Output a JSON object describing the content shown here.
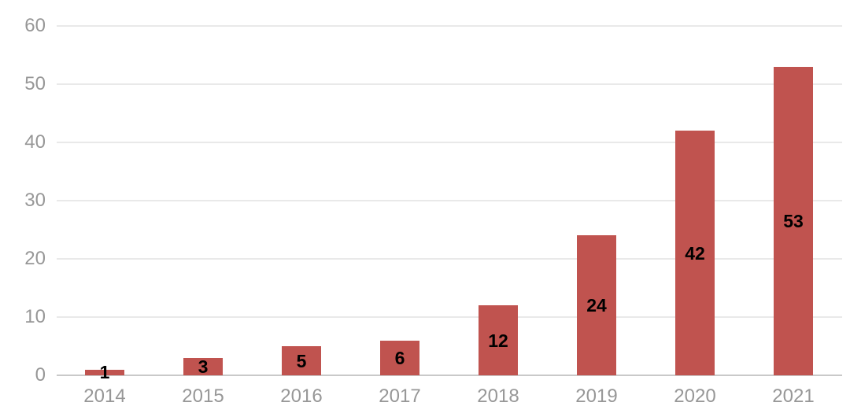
{
  "chart_data": {
    "type": "bar",
    "categories": [
      "2014",
      "2015",
      "2016",
      "2017",
      "2018",
      "2019",
      "2020",
      "2021"
    ],
    "values": [
      1,
      3,
      5,
      6,
      12,
      24,
      42,
      53
    ],
    "title": "",
    "xlabel": "",
    "ylabel": "",
    "ylim": [
      0,
      60
    ],
    "yticks": [
      0,
      10,
      20,
      30,
      40,
      50,
      60
    ],
    "grid": true,
    "legend": "none",
    "colors": {
      "bar": "#c0534f",
      "value_label": "#000000",
      "tick_label": "#979797",
      "gridline": "#e9e9e9",
      "baseline": "#c9c9c9",
      "background": "#ffffff"
    }
  }
}
